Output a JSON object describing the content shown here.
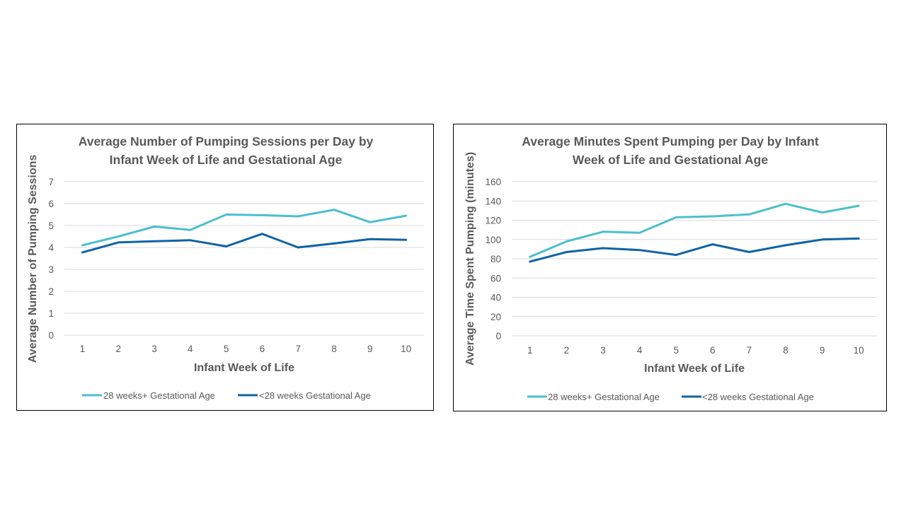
{
  "chart_data": [
    {
      "type": "line",
      "title": [
        "Average Number of Pumping Sessions per Day by",
        "Infant Week of Life and Gestational Age"
      ],
      "xlabel": "Infant Week of Life",
      "ylabel": "Average Number of Pumping Sessions",
      "x": [
        1,
        2,
        3,
        4,
        5,
        6,
        7,
        8,
        9,
        10
      ],
      "ylim": [
        0,
        7
      ],
      "yticks": [
        0,
        1,
        2,
        3,
        4,
        5,
        6,
        7
      ],
      "grid": true,
      "legend_position": "bottom",
      "series": [
        {
          "name": "28 weeks+ Gestational Age",
          "color": "#4bbfcc",
          "values": [
            4.1,
            4.5,
            4.95,
            4.8,
            5.5,
            5.47,
            5.42,
            5.72,
            5.15,
            5.45
          ]
        },
        {
          "name": "<28 weeks Gestational Age",
          "color": "#0f63a6",
          "values": [
            3.77,
            4.23,
            4.28,
            4.33,
            4.05,
            4.62,
            4.0,
            4.18,
            4.38,
            4.35
          ]
        }
      ]
    },
    {
      "type": "line",
      "title": [
        "Average Minutes Spent Pumping per Day by Infant",
        "Week of Life and Gestational Age"
      ],
      "xlabel": "Infant Week of Life",
      "ylabel": "Average Time Spent Pumping (minutes)",
      "x": [
        1,
        2,
        3,
        4,
        5,
        6,
        7,
        8,
        9,
        10
      ],
      "ylim": [
        0,
        160
      ],
      "yticks": [
        0,
        20,
        40,
        60,
        80,
        100,
        120,
        140,
        160
      ],
      "grid": true,
      "legend_position": "bottom",
      "series": [
        {
          "name": "28 weeks+ Gestational Age",
          "color": "#4bbfcc",
          "values": [
            82,
            98,
            108,
            107,
            123,
            124,
            126,
            137,
            128,
            135
          ]
        },
        {
          "name": "<28 weeks Gestational Age",
          "color": "#0f63a6",
          "values": [
            77,
            87,
            91,
            89,
            84,
            95,
            87,
            94,
            100,
            101
          ]
        }
      ]
    }
  ]
}
